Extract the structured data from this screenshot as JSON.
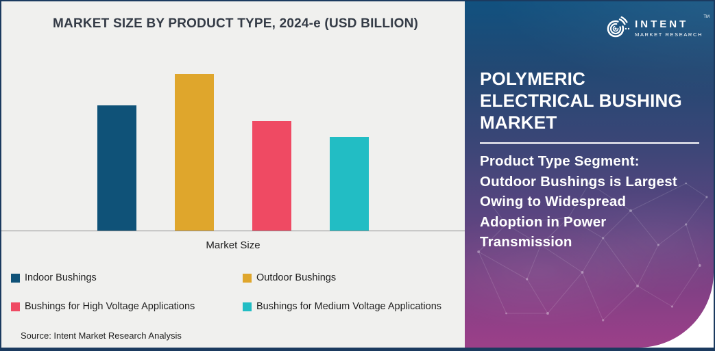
{
  "chart": {
    "title": "MARKET SIZE BY PRODUCT TYPE, 2024-e (USD BILLION)",
    "x_axis_label": "Market Size",
    "source": "Source: Intent Market Research Analysis"
  },
  "chart_data": {
    "type": "bar",
    "title": "MARKET SIZE BY PRODUCT TYPE, 2024-e (USD BILLION)",
    "categories": [
      "Market Size"
    ],
    "series": [
      {
        "name": "Indoor Bushings",
        "color": "#0F5278",
        "values": [
          0.8
        ]
      },
      {
        "name": "Outdoor Bushings",
        "color": "#DFA62C",
        "values": [
          1.0
        ]
      },
      {
        "name": "Bushings for High Voltage Applications",
        "color": "#EF4A63",
        "values": [
          0.7
        ]
      },
      {
        "name": "Bushings for Medium Voltage Applications",
        "color": "#22BDC4",
        "values": [
          0.6
        ]
      }
    ],
    "xlabel": "Market Size",
    "ylabel": "",
    "value_axis": "hidden - no numeric ticks shown; values are relative bar heights normalized to tallest bar = 1.0",
    "grid": false,
    "legend_position": "bottom"
  },
  "sidebar": {
    "logo": {
      "brand": "INTENT",
      "tm": "TM",
      "sub": "MARKET RESEARCH"
    },
    "title": "POLYMERIC ELECTRICAL BUSHING MARKET",
    "description": "Product Type Segment: Outdoor Bushings is Largest Owing to Widespread Adoption in Power Transmission",
    "description_lines": {
      "0": "Product Type Segment:",
      "1": "Outdoor Bushings is Largest",
      "2": "Owing to Widespread",
      "3": "Adoption in Power",
      "4": "Transmission"
    },
    "colors": {
      "gradient_top": "#11517F",
      "gradient_mid": "#3C4677",
      "gradient_bottom": "#9B4088"
    }
  },
  "colors": {
    "panel_bg": "#F0F0EE",
    "frame_border": "#1B3A5F",
    "title_text": "#343B46",
    "axis_line": "#8A8A8A"
  }
}
